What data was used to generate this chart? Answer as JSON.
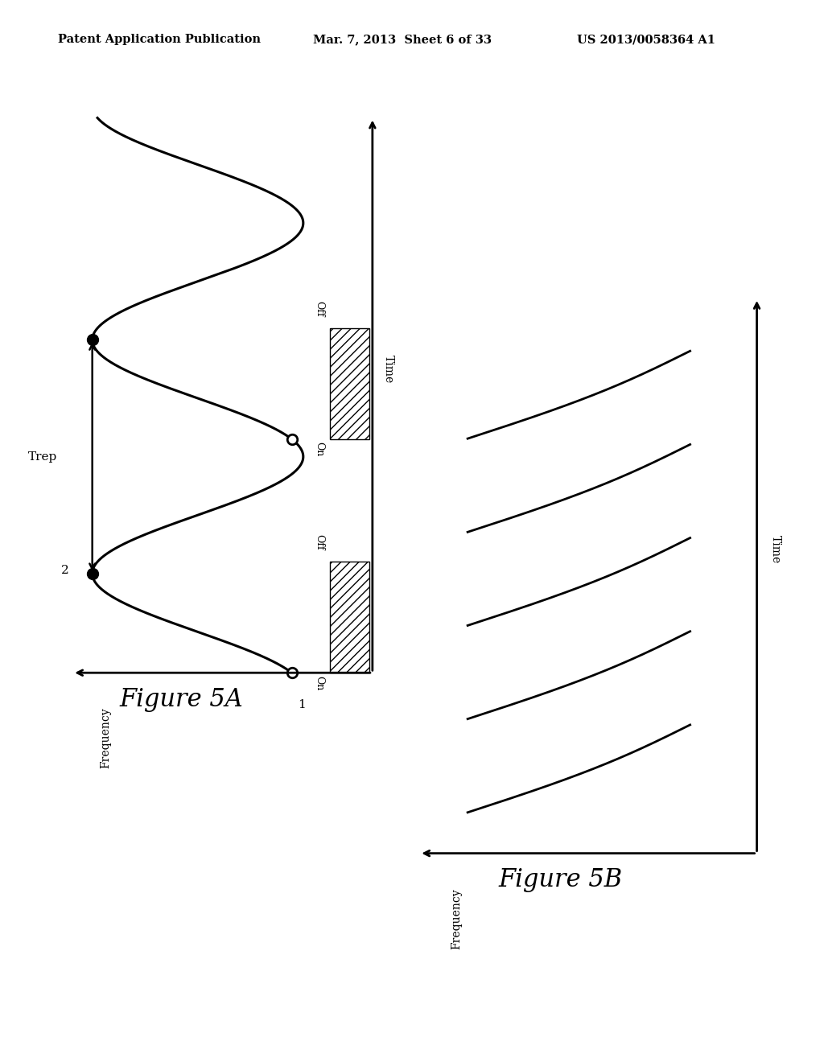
{
  "header_left": "Patent Application Publication",
  "header_mid": "Mar. 7, 2013  Sheet 6 of 33",
  "header_right": "US 2013/0058364 A1",
  "fig5a_label": "Figure 5A",
  "fig5b_label": "Figure 5B",
  "bg_color": "#ffffff",
  "line_color": "#000000",
  "header_fontsize": 10.5,
  "fig_label_fontsize": 22
}
